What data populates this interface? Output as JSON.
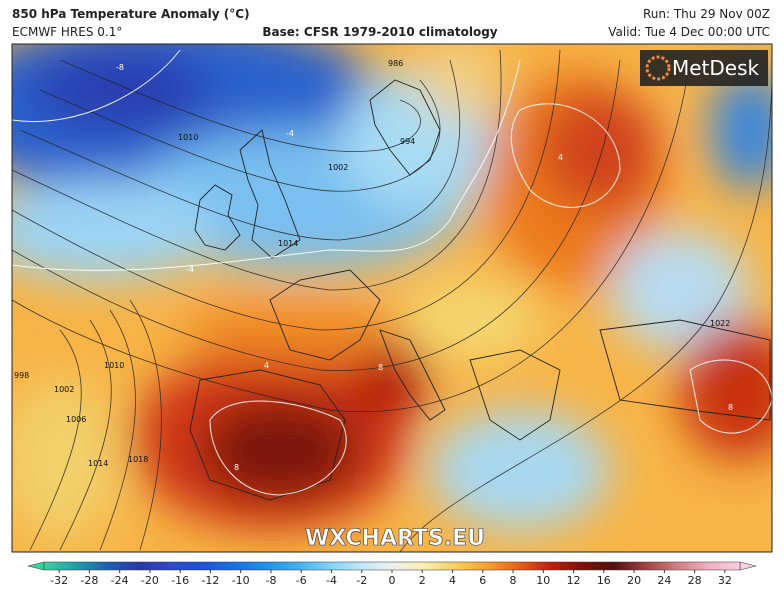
{
  "header": {
    "title": "850 hPa Temperature Anomaly (°C)",
    "model": "ECMWF HRES 0.1°",
    "base": "Base: CFSR 1979-2010 climatology",
    "run": "Run: Thu 29 Nov 00Z",
    "valid": "Valid: Tue 4 Dec 00:00 UTC"
  },
  "logo": "MetDesk",
  "watermark": "WXCHARTS.EU",
  "isobar_labels": [
    "986",
    "994",
    "1002",
    "1010",
    "1014",
    "998",
    "1002",
    "1006",
    "1010",
    "1014",
    "1018",
    "1022"
  ],
  "isotherm_labels": [
    "-8",
    "-4",
    "-4",
    "4",
    "4",
    "8",
    "8",
    "8"
  ],
  "colorbar": {
    "ticks": [
      -32,
      -28,
      -24,
      -20,
      -16,
      -12,
      -10,
      -8,
      -6,
      -4,
      -2,
      0,
      2,
      4,
      6,
      8,
      10,
      12,
      16,
      20,
      24,
      28,
      32
    ],
    "colors": [
      "#40d0a0",
      "#20a0a8",
      "#2060b0",
      "#2838a8",
      "#3048c8",
      "#2050d8",
      "#1870e0",
      "#2090e8",
      "#40b0f0",
      "#80d0f8",
      "#c0e8f8",
      "#f0f0f0",
      "#f8f0b0",
      "#f8d060",
      "#f8a030",
      "#e86018",
      "#c02010",
      "#801008",
      "#501010",
      "#a04040",
      "#d08080",
      "#f0b0c0",
      "#f8d0e0"
    ]
  }
}
